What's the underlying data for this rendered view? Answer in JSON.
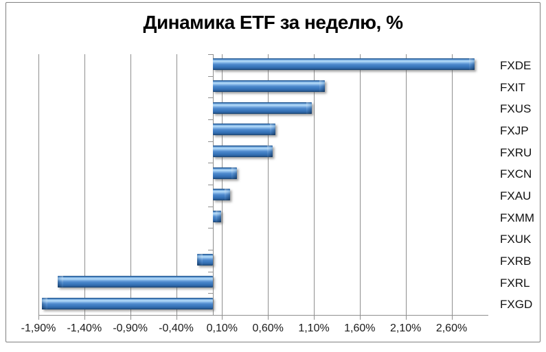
{
  "chart_data": {
    "type": "bar",
    "orientation": "horizontal",
    "title": "Динамика ETF за неделю, %",
    "categories": [
      "FXDE",
      "FXIT",
      "FXUS",
      "FXJP",
      "FXRU",
      "FXCN",
      "FXAU",
      "FXMM",
      "FXUK",
      "FXRB",
      "FXRL",
      "FXGD"
    ],
    "values": [
      2.85,
      1.22,
      1.08,
      0.68,
      0.65,
      0.26,
      0.19,
      0.09,
      0.0,
      -0.17,
      -1.69,
      -1.86
    ],
    "value_unit": "%",
    "xlabel": "",
    "ylabel": "",
    "xlim": [
      -1.9,
      3.0
    ],
    "x_ticks": [
      {
        "value": -1.9,
        "label": "-1,90%"
      },
      {
        "value": -1.4,
        "label": "-1,40%"
      },
      {
        "value": -0.9,
        "label": "-0,90%"
      },
      {
        "value": -0.4,
        "label": "-0,40%"
      },
      {
        "value": 0.1,
        "label": "0,10%"
      },
      {
        "value": 0.6,
        "label": "0,60%"
      },
      {
        "value": 1.1,
        "label": "1,10%"
      },
      {
        "value": 1.6,
        "label": "1,60%"
      },
      {
        "value": 2.1,
        "label": "2,10%"
      },
      {
        "value": 2.6,
        "label": "2,60%"
      }
    ],
    "grid": true,
    "legend": false,
    "colors": {
      "bar": "#3C7AC0",
      "bar_highlight": "#B4DAF8",
      "bar_dark": "#1B4B7E",
      "gridline": "#8E8E8E",
      "text": "#1A1A1A",
      "frame_border": "#7F7F7F",
      "background": "#FFFFFF"
    }
  }
}
